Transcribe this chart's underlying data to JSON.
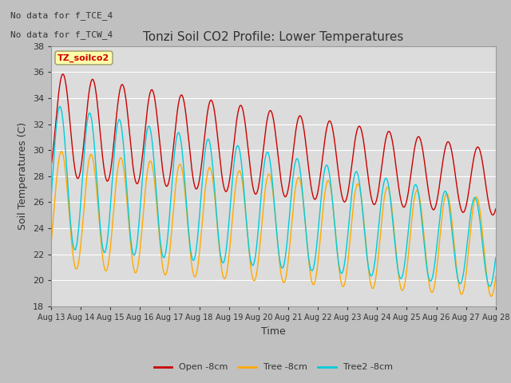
{
  "title": "Tonzi Soil CO2 Profile: Lower Temperatures",
  "ylabel": "Soil Temperatures (C)",
  "xlabel": "Time",
  "annotation1": "No data for f_TCE_4",
  "annotation2": "No data for f_TCW_4",
  "legend_box_label": "TZ_soilco2",
  "ylim": [
    18,
    38
  ],
  "xlim_days": [
    13,
    28
  ],
  "fig_bg_color": "#c0c0c0",
  "plot_bg_color": "#dcdcdc",
  "line_colors": {
    "open": "#cc0000",
    "tree": "#ffaa00",
    "tree2": "#00ccdd"
  },
  "legend_labels": [
    "Open -8cm",
    "Tree -8cm",
    "Tree2 -8cm"
  ],
  "tick_labels": [
    "Aug 13",
    "Aug 14",
    "Aug 15",
    "Aug 16",
    "Aug 17",
    "Aug 18",
    "Aug 19",
    "Aug 20",
    "Aug 21",
    "Aug 22",
    "Aug 23",
    "Aug 24",
    "Aug 25",
    "Aug 26",
    "Aug 27",
    "Aug 28"
  ]
}
